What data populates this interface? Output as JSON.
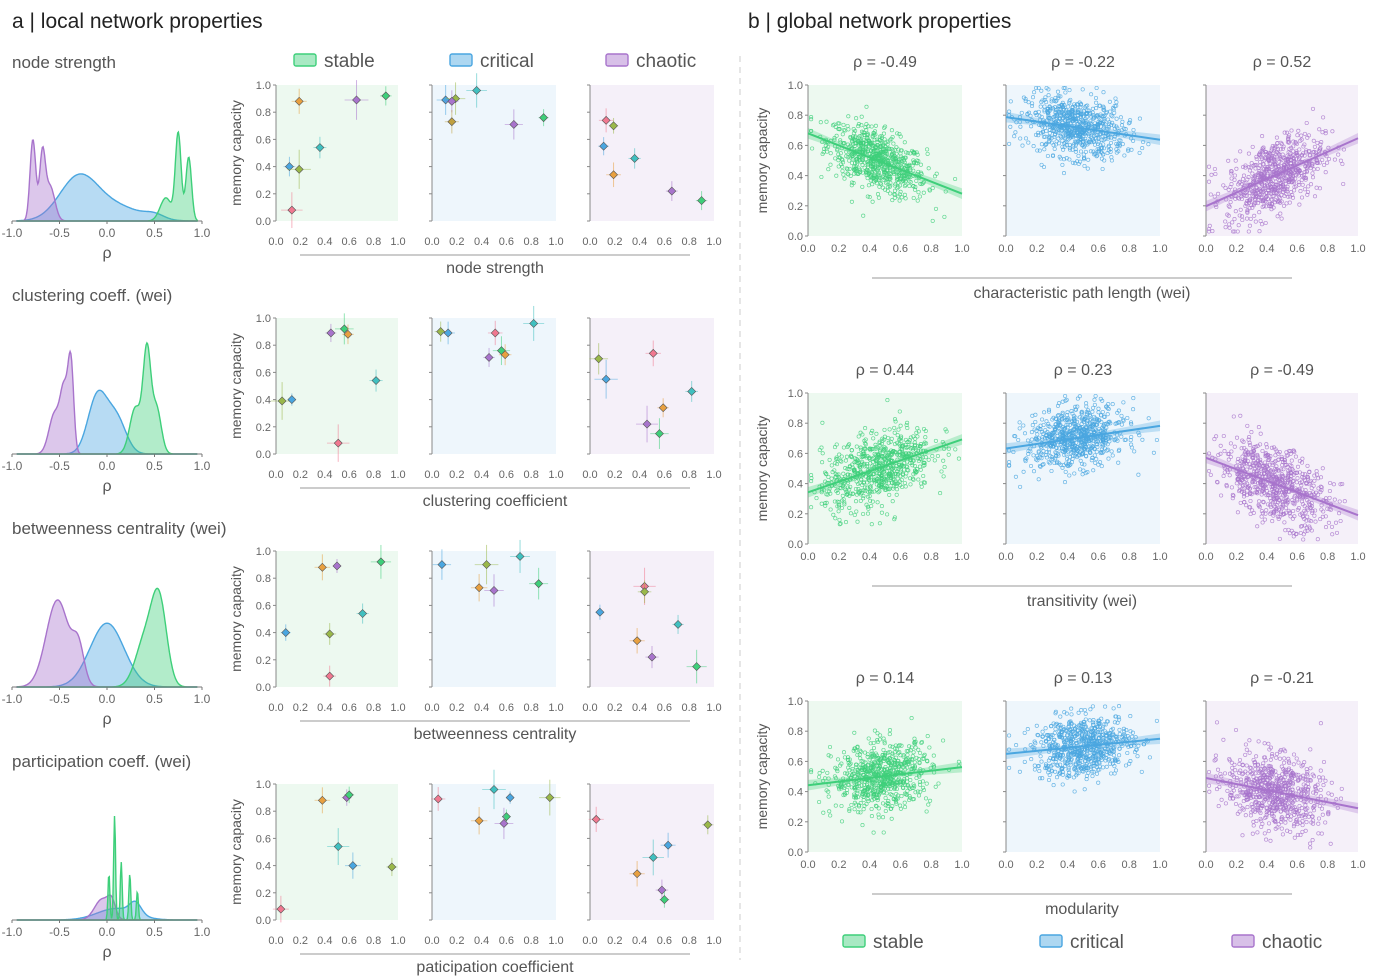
{
  "panel_a_title": "a | local network properties",
  "panel_b_title": "b | global network properties",
  "ylabel": "memory capacity",
  "rho_symbol": "ρ",
  "legend": [
    {
      "label": "stable",
      "color": "#3ecf7a"
    },
    {
      "label": "critical",
      "color": "#4aa6e0"
    },
    {
      "label": "chaotic",
      "color": "#a874cc"
    }
  ],
  "colors": {
    "stable": "#3ecf7a",
    "critical": "#4aa6e0",
    "chaotic": "#a874cc",
    "bg_stable": "#edf9f0",
    "bg_critical": "#eef6fc",
    "bg_chaotic": "#f5f0f9"
  },
  "yticks": [
    "0.0",
    "0.2",
    "0.4",
    "0.6",
    "0.8",
    "1.0"
  ],
  "xticks": [
    "0.0",
    "0.2",
    "0.4",
    "0.6",
    "0.8",
    "1.0"
  ],
  "kde_xticks": [
    "-1.0",
    "-0.5",
    "0.0",
    "0.5",
    "1.0"
  ],
  "chart_data": [
    {
      "type": "area",
      "panel": "a",
      "title": "node strength",
      "xlabel": "ρ",
      "xlim": [
        -1,
        1
      ],
      "series": [
        {
          "name": "chaotic",
          "peaks": [
            [
              -0.78,
              0.03,
              0.7
            ],
            [
              -0.68,
              0.03,
              0.55
            ],
            [
              -0.6,
              0.05,
              0.3
            ]
          ]
        },
        {
          "name": "critical",
          "peaks": [
            [
              -0.3,
              0.2,
              0.37
            ],
            [
              0.1,
              0.25,
              0.12
            ],
            [
              0.5,
              0.1,
              0.04
            ]
          ]
        },
        {
          "name": "stable",
          "peaks": [
            [
              0.62,
              0.06,
              0.2
            ],
            [
              0.75,
              0.03,
              0.75
            ],
            [
              0.86,
              0.03,
              0.55
            ]
          ]
        }
      ]
    },
    {
      "type": "scatter",
      "panel": "a",
      "title": "node strength",
      "xlabel": "node strength",
      "ylabel": "memory capacity",
      "xlim": [
        0,
        1
      ],
      "ylim": [
        0,
        1
      ],
      "stable": [
        [
          0.9,
          0.92,
          "#3ecf7a"
        ],
        [
          0.66,
          0.89,
          "#a874cc"
        ],
        [
          0.19,
          0.88,
          "#e8a040"
        ],
        [
          0.36,
          0.54,
          "#40c0c0"
        ],
        [
          0.11,
          0.4,
          "#4aa6e0"
        ],
        [
          0.19,
          0.38,
          "#9ab84a"
        ],
        [
          0.13,
          0.08,
          "#f07890"
        ]
      ],
      "critical": [
        [
          0.36,
          0.96,
          "#40c0c0"
        ],
        [
          0.11,
          0.89,
          "#4aa6e0"
        ],
        [
          0.19,
          0.9,
          "#9ab84a"
        ],
        [
          0.16,
          0.88,
          "#a874cc"
        ],
        [
          0.16,
          0.73,
          "#c0a040"
        ],
        [
          0.66,
          0.71,
          "#a874cc"
        ],
        [
          0.9,
          0.76,
          "#3ecf7a"
        ]
      ],
      "chaotic": [
        [
          0.13,
          0.74,
          "#f07890"
        ],
        [
          0.19,
          0.7,
          "#9ab84a"
        ],
        [
          0.11,
          0.55,
          "#4aa6e0"
        ],
        [
          0.36,
          0.46,
          "#40c0c0"
        ],
        [
          0.19,
          0.34,
          "#e8a040"
        ],
        [
          0.66,
          0.22,
          "#a874cc"
        ],
        [
          0.9,
          0.15,
          "#3ecf7a"
        ]
      ]
    },
    {
      "type": "area",
      "panel": "a",
      "title": "clustering coeff. (wei)",
      "xlabel": "ρ",
      "xlim": [
        -1,
        1
      ],
      "series": [
        {
          "name": "chaotic",
          "peaks": [
            [
              -0.55,
              0.06,
              0.35
            ],
            [
              -0.45,
              0.04,
              0.5
            ],
            [
              -0.38,
              0.03,
              0.75
            ]
          ]
        },
        {
          "name": "critical",
          "peaks": [
            [
              -0.1,
              0.1,
              0.5
            ],
            [
              0.1,
              0.1,
              0.3
            ]
          ]
        },
        {
          "name": "stable",
          "peaks": [
            [
              0.3,
              0.06,
              0.4
            ],
            [
              0.42,
              0.04,
              0.85
            ],
            [
              0.52,
              0.05,
              0.4
            ]
          ]
        }
      ]
    },
    {
      "type": "scatter",
      "panel": "a",
      "title": "clustering coeff. (wei)",
      "xlabel": "clustering coefficient",
      "ylabel": "memory capacity",
      "xlim": [
        0,
        1
      ],
      "ylim": [
        0,
        1
      ],
      "stable": [
        [
          0.45,
          0.89,
          "#a874cc"
        ],
        [
          0.56,
          0.92,
          "#3ecf7a"
        ],
        [
          0.59,
          0.88,
          "#e8a040"
        ],
        [
          0.82,
          0.54,
          "#40c0c0"
        ],
        [
          0.05,
          0.39,
          "#9ab84a"
        ],
        [
          0.13,
          0.4,
          "#4aa6e0"
        ],
        [
          0.51,
          0.08,
          "#f07890"
        ]
      ],
      "critical": [
        [
          0.07,
          0.9,
          "#9ab84a"
        ],
        [
          0.13,
          0.89,
          "#4aa6e0"
        ],
        [
          0.51,
          0.89,
          "#f07890"
        ],
        [
          0.82,
          0.96,
          "#40c0c0"
        ],
        [
          0.56,
          0.76,
          "#3ecf7a"
        ],
        [
          0.59,
          0.73,
          "#e8a040"
        ],
        [
          0.46,
          0.71,
          "#a874cc"
        ]
      ],
      "chaotic": [
        [
          0.07,
          0.7,
          "#9ab84a"
        ],
        [
          0.51,
          0.74,
          "#f07890"
        ],
        [
          0.13,
          0.55,
          "#4aa6e0"
        ],
        [
          0.82,
          0.46,
          "#40c0c0"
        ],
        [
          0.59,
          0.34,
          "#e8a040"
        ],
        [
          0.46,
          0.22,
          "#a874cc"
        ],
        [
          0.56,
          0.15,
          "#3ecf7a"
        ]
      ]
    },
    {
      "type": "area",
      "panel": "a",
      "title": "betweenness centrality (wei)",
      "xlabel": "ρ",
      "xlim": [
        -1,
        1
      ],
      "series": [
        {
          "name": "chaotic",
          "peaks": [
            [
              -0.52,
              0.12,
              0.75
            ],
            [
              -0.3,
              0.06,
              0.3
            ]
          ]
        },
        {
          "name": "critical",
          "peaks": [
            [
              0.0,
              0.18,
              0.55
            ]
          ]
        },
        {
          "name": "stable",
          "peaks": [
            [
              0.4,
              0.1,
              0.4
            ],
            [
              0.55,
              0.08,
              0.7
            ]
          ]
        }
      ]
    },
    {
      "type": "scatter",
      "panel": "a",
      "title": "betweenness centrality (wei)",
      "xlabel": "betweenness centrality",
      "ylabel": "memory capacity",
      "xlim": [
        0,
        1
      ],
      "ylim": [
        0,
        1
      ],
      "stable": [
        [
          0.38,
          0.88,
          "#e8a040"
        ],
        [
          0.5,
          0.89,
          "#a874cc"
        ],
        [
          0.86,
          0.92,
          "#3ecf7a"
        ],
        [
          0.71,
          0.54,
          "#40c0c0"
        ],
        [
          0.08,
          0.4,
          "#4aa6e0"
        ],
        [
          0.44,
          0.39,
          "#9ab84a"
        ],
        [
          0.44,
          0.08,
          "#f07890"
        ]
      ],
      "critical": [
        [
          0.08,
          0.9,
          "#4aa6e0"
        ],
        [
          0.44,
          0.9,
          "#9ab84a"
        ],
        [
          0.71,
          0.96,
          "#40c0c0"
        ],
        [
          0.38,
          0.73,
          "#e8a040"
        ],
        [
          0.5,
          0.71,
          "#a874cc"
        ],
        [
          0.86,
          0.76,
          "#3ecf7a"
        ]
      ],
      "chaotic": [
        [
          0.44,
          0.74,
          "#f07890"
        ],
        [
          0.44,
          0.7,
          "#9ab84a"
        ],
        [
          0.08,
          0.55,
          "#4aa6e0"
        ],
        [
          0.71,
          0.46,
          "#40c0c0"
        ],
        [
          0.38,
          0.34,
          "#e8a040"
        ],
        [
          0.5,
          0.22,
          "#a874cc"
        ],
        [
          0.86,
          0.15,
          "#3ecf7a"
        ]
      ]
    },
    {
      "type": "area",
      "panel": "a",
      "title": "participation coeff. (wei)",
      "xlabel": "ρ",
      "xlim": [
        -1,
        1
      ],
      "series": [
        {
          "name": "chaotic",
          "peaks": [
            [
              -0.05,
              0.08,
              0.18
            ],
            [
              0.05,
              0.04,
              0.12
            ]
          ]
        },
        {
          "name": "critical",
          "peaks": [
            [
              0.1,
              0.2,
              0.1
            ],
            [
              0.3,
              0.06,
              0.1
            ]
          ]
        },
        {
          "name": "stable",
          "peaks": [
            [
              0.02,
              0.01,
              0.4
            ],
            [
              0.08,
              0.01,
              0.9
            ],
            [
              0.15,
              0.01,
              0.5
            ],
            [
              0.24,
              0.01,
              0.4
            ],
            [
              0.32,
              0.01,
              0.25
            ]
          ]
        }
      ]
    },
    {
      "type": "scatter",
      "panel": "a",
      "title": "participation coeff. (wei)",
      "xlabel": "paticipation coefficient",
      "ylabel": "memory capacity",
      "xlim": [
        0,
        1
      ],
      "ylim": [
        0,
        1
      ],
      "stable": [
        [
          0.38,
          0.88,
          "#e8a040"
        ],
        [
          0.58,
          0.9,
          "#a874cc"
        ],
        [
          0.6,
          0.92,
          "#3ecf7a"
        ],
        [
          0.51,
          0.54,
          "#40c0c0"
        ],
        [
          0.63,
          0.4,
          "#4aa6e0"
        ],
        [
          0.95,
          0.39,
          "#9ab84a"
        ],
        [
          0.04,
          0.08,
          "#f07890"
        ]
      ],
      "critical": [
        [
          0.05,
          0.89,
          "#f07890"
        ],
        [
          0.5,
          0.96,
          "#40c0c0"
        ],
        [
          0.63,
          0.9,
          "#4aa6e0"
        ],
        [
          0.95,
          0.9,
          "#9ab84a"
        ],
        [
          0.38,
          0.73,
          "#e8a040"
        ],
        [
          0.6,
          0.76,
          "#3ecf7a"
        ],
        [
          0.58,
          0.71,
          "#a874cc"
        ]
      ],
      "chaotic": [
        [
          0.05,
          0.74,
          "#f07890"
        ],
        [
          0.95,
          0.7,
          "#9ab84a"
        ],
        [
          0.63,
          0.55,
          "#4aa6e0"
        ],
        [
          0.51,
          0.46,
          "#40c0c0"
        ],
        [
          0.38,
          0.34,
          "#e8a040"
        ],
        [
          0.58,
          0.22,
          "#a874cc"
        ],
        [
          0.6,
          0.15,
          "#3ecf7a"
        ]
      ]
    },
    {
      "type": "scatter",
      "panel": "b",
      "xlabel": "characteristic path length (wei)",
      "ylabel": "memory capacity",
      "xlim": [
        0,
        1
      ],
      "ylim": [
        0,
        1
      ],
      "regimes": [
        {
          "name": "stable",
          "rho": "ρ = -0.49",
          "mean": [
            0.45,
            0.5
          ],
          "sd": [
            0.16,
            0.1
          ],
          "slope": -0.4,
          "n": 700
        },
        {
          "name": "critical",
          "rho": "ρ = -0.22",
          "mean": [
            0.45,
            0.72
          ],
          "sd": [
            0.16,
            0.1
          ],
          "slope": -0.15,
          "n": 700
        },
        {
          "name": "chaotic",
          "rho": "ρ = 0.52",
          "mean": [
            0.45,
            0.4
          ],
          "sd": [
            0.16,
            0.12
          ],
          "slope": 0.45,
          "n": 700
        }
      ]
    },
    {
      "type": "scatter",
      "panel": "b",
      "xlabel": "transitivity (wei)",
      "ylabel": "memory capacity",
      "xlim": [
        0,
        1
      ],
      "ylim": [
        0,
        1
      ],
      "regimes": [
        {
          "name": "stable",
          "rho": "ρ = 0.44",
          "mean": [
            0.45,
            0.5
          ],
          "sd": [
            0.18,
            0.12
          ],
          "slope": 0.35,
          "n": 700
        },
        {
          "name": "critical",
          "rho": "ρ = 0.23",
          "mean": [
            0.45,
            0.7
          ],
          "sd": [
            0.16,
            0.1
          ],
          "slope": 0.15,
          "n": 700
        },
        {
          "name": "chaotic",
          "rho": "ρ = -0.49",
          "mean": [
            0.45,
            0.4
          ],
          "sd": [
            0.18,
            0.12
          ],
          "slope": -0.38,
          "n": 700
        }
      ]
    },
    {
      "type": "scatter",
      "panel": "b",
      "xlabel": "modularity",
      "ylabel": "memory capacity",
      "xlim": [
        0,
        1
      ],
      "ylim": [
        0,
        1
      ],
      "regimes": [
        {
          "name": "stable",
          "rho": "ρ = 0.14",
          "mean": [
            0.48,
            0.5
          ],
          "sd": [
            0.16,
            0.11
          ],
          "slope": 0.12,
          "n": 700
        },
        {
          "name": "critical",
          "rho": "ρ = 0.13",
          "mean": [
            0.5,
            0.7
          ],
          "sd": [
            0.16,
            0.1
          ],
          "slope": 0.1,
          "n": 700
        },
        {
          "name": "chaotic",
          "rho": "ρ = -0.21",
          "mean": [
            0.45,
            0.4
          ],
          "sd": [
            0.16,
            0.12
          ],
          "slope": -0.2,
          "n": 700
        }
      ]
    }
  ]
}
